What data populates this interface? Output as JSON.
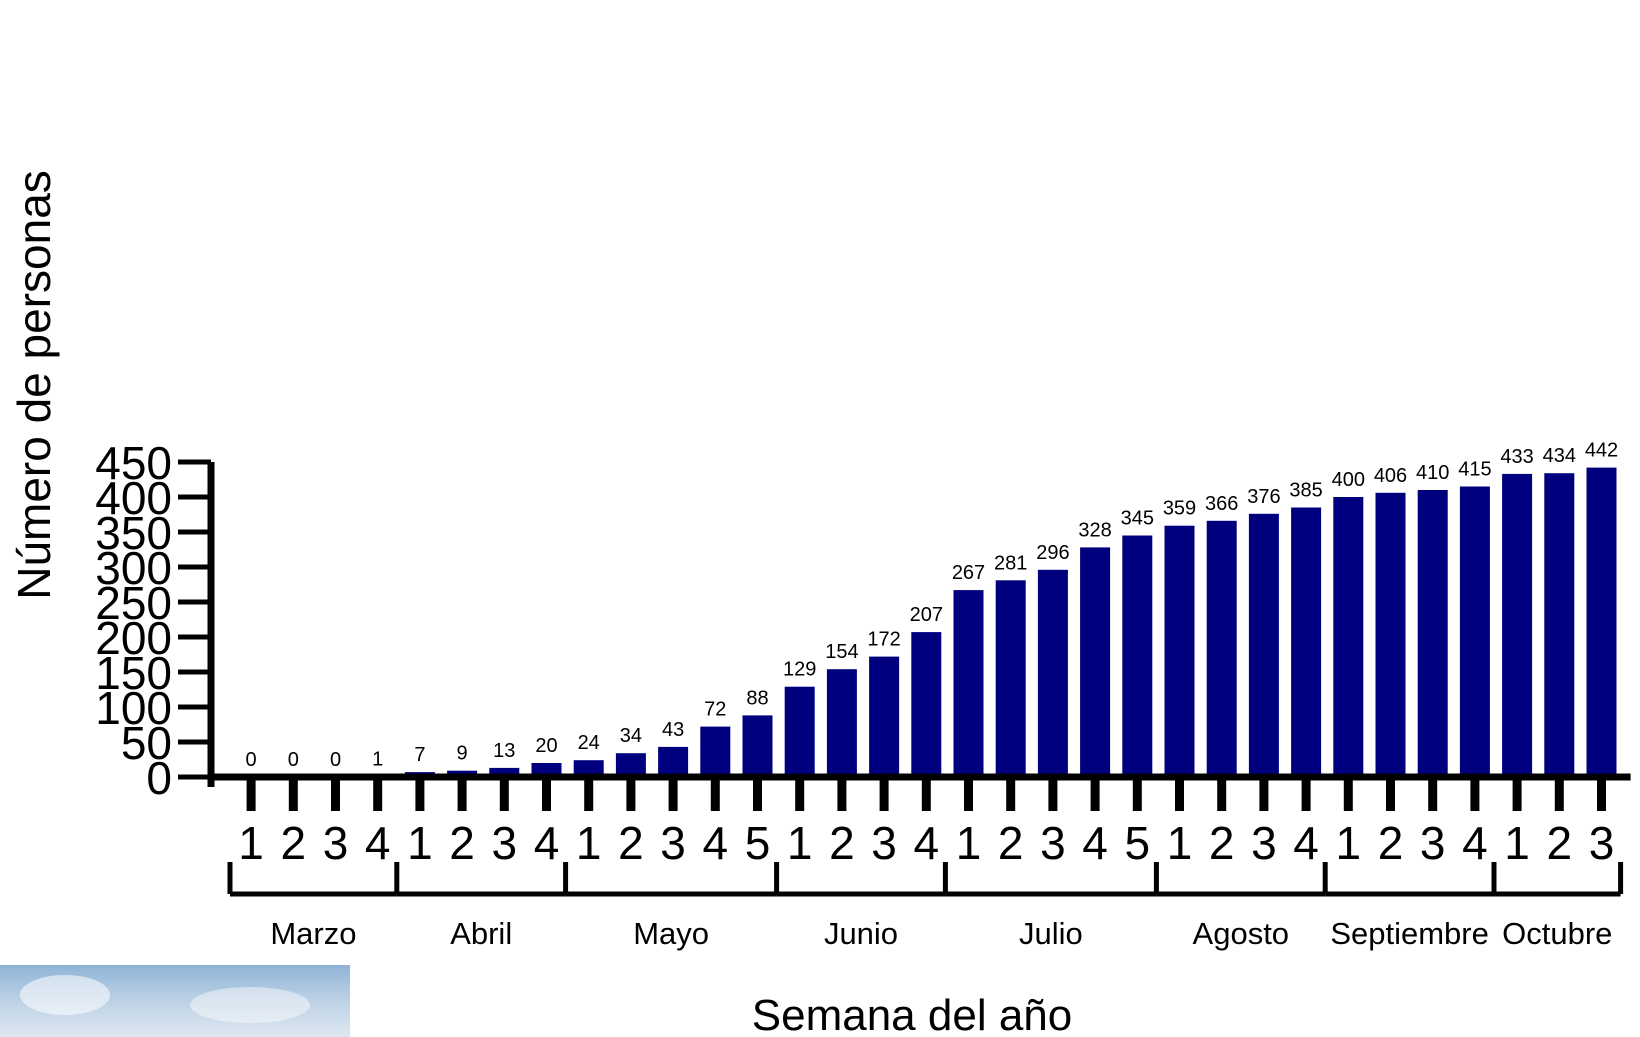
{
  "chart_data": {
    "type": "bar",
    "title": "",
    "xlabel": "Semana del año",
    "ylabel": "Número de personas",
    "ylim": [
      0,
      450
    ],
    "yticks": [
      0,
      50,
      100,
      150,
      200,
      250,
      300,
      350,
      400,
      450
    ],
    "categories": [
      "1",
      "2",
      "3",
      "4",
      "1",
      "2",
      "3",
      "4",
      "1",
      "2",
      "3",
      "4",
      "5",
      "1",
      "2",
      "3",
      "4",
      "1",
      "2",
      "3",
      "4",
      "5",
      "1",
      "2",
      "3",
      "4",
      "1",
      "2",
      "3",
      "4",
      "1",
      "2",
      "3"
    ],
    "values": [
      0,
      0,
      0,
      1,
      7,
      9,
      13,
      20,
      24,
      34,
      43,
      72,
      88,
      129,
      154,
      172,
      207,
      267,
      281,
      296,
      328,
      345,
      359,
      366,
      376,
      385,
      400,
      406,
      410,
      415,
      433,
      434,
      442
    ],
    "months": [
      {
        "name": "Marzo",
        "start": 0,
        "end": 3
      },
      {
        "name": "Abril",
        "start": 4,
        "end": 7
      },
      {
        "name": "Mayo",
        "start": 8,
        "end": 12
      },
      {
        "name": "Junio",
        "start": 13,
        "end": 16
      },
      {
        "name": "Julio",
        "start": 17,
        "end": 21
      },
      {
        "name": "Agosto",
        "start": 22,
        "end": 25
      },
      {
        "name": "Septiembre",
        "start": 26,
        "end": 29
      },
      {
        "name": "Octubre",
        "start": 30,
        "end": 32
      }
    ],
    "bar_color": "#00007f",
    "grid": false,
    "legend": "none"
  }
}
